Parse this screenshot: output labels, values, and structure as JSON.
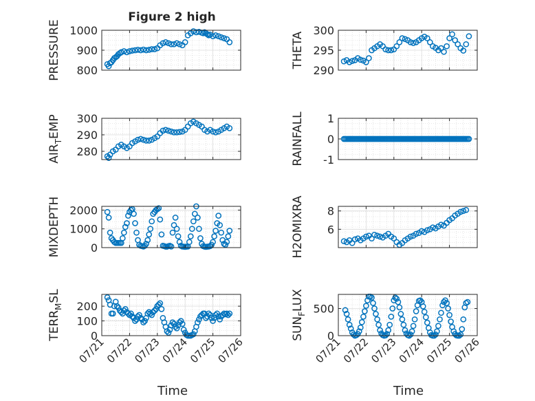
{
  "figure": {
    "title": "Figure 2 high",
    "xlabel": "Time"
  },
  "style": {
    "marker_color": "#0072BD",
    "axis_color": "#262626",
    "grid_color": "#dcdcdc",
    "background": "#ffffff"
  },
  "chart_data": [
    {
      "type": "scatter",
      "id": "pressure",
      "title": "Figure 2 high",
      "ylabel": "PRESSURE",
      "ylabel_main": "PRESSURE",
      "ylabel_sub": "",
      "ylabel_tail": "",
      "xlim": [
        0,
        5
      ],
      "ylim": [
        800,
        1000
      ],
      "yticks": [
        800,
        900,
        1000
      ],
      "xticks": [],
      "grid": true,
      "x": [
        0.2,
        0.25,
        0.3,
        0.35,
        0.4,
        0.45,
        0.5,
        0.55,
        0.6,
        0.65,
        0.7,
        0.8,
        0.9,
        1.0,
        1.1,
        1.2,
        1.3,
        1.4,
        1.5,
        1.6,
        1.7,
        1.8,
        1.9,
        2.0,
        2.1,
        2.2,
        2.3,
        2.4,
        2.5,
        2.6,
        2.7,
        2.8,
        2.9,
        3.0,
        3.1,
        3.2,
        3.3,
        3.4,
        3.5,
        3.6,
        3.65,
        3.7,
        3.75,
        3.8,
        3.85,
        3.9,
        4.0,
        4.1,
        4.2,
        4.3,
        4.4,
        4.5,
        4.6
      ],
      "y": [
        830,
        820,
        835,
        840,
        850,
        860,
        865,
        870,
        880,
        885,
        890,
        895,
        890,
        895,
        898,
        900,
        902,
        900,
        903,
        900,
        902,
        905,
        905,
        910,
        925,
        935,
        940,
        935,
        930,
        930,
        935,
        930,
        925,
        940,
        975,
        985,
        995,
        990,
        992,
        988,
        985,
        990,
        985,
        980,
        975,
        978,
        970,
        975,
        970,
        965,
        960,
        955,
        940
      ]
    },
    {
      "type": "scatter",
      "id": "theta",
      "ylabel": "THETA",
      "ylabel_main": "THETA",
      "ylabel_sub": "",
      "ylabel_tail": "",
      "xlim": [
        0,
        5
      ],
      "ylim": [
        290,
        300
      ],
      "yticks": [
        290,
        295,
        300
      ],
      "xticks": [],
      "grid": true,
      "x": [
        0.2,
        0.3,
        0.4,
        0.5,
        0.6,
        0.7,
        0.8,
        0.9,
        1.0,
        1.1,
        1.2,
        1.3,
        1.4,
        1.5,
        1.6,
        1.7,
        1.8,
        1.9,
        2.0,
        2.1,
        2.2,
        2.3,
        2.4,
        2.5,
        2.6,
        2.7,
        2.8,
        2.9,
        3.0,
        3.1,
        3.2,
        3.3,
        3.4,
        3.5,
        3.6,
        3.7,
        3.8,
        3.9,
        4.0,
        4.1,
        4.2,
        4.3,
        4.4,
        4.5,
        4.6,
        4.7
      ],
      "y": [
        292.2,
        292.5,
        292.0,
        292.3,
        292.5,
        293,
        292.6,
        292.4,
        292,
        293,
        295,
        295.5,
        296,
        296.5,
        296,
        295.2,
        295,
        295,
        295.2,
        296,
        297,
        298,
        297.8,
        297.5,
        297,
        296.8,
        297,
        297.5,
        298,
        298.4,
        298,
        297,
        296,
        295.6,
        295,
        295.5,
        294.6,
        296,
        298,
        299,
        297.5,
        296.5,
        295.5,
        294.9,
        296.5,
        298.5
      ]
    },
    {
      "type": "scatter",
      "id": "air_temp",
      "ylabel": "AIR_TEMP",
      "ylabel_main": "AIR",
      "ylabel_sub": "T",
      "ylabel_tail": "EMP",
      "xlim": [
        0,
        5
      ],
      "ylim": [
        275,
        300
      ],
      "yticks": [
        280,
        290,
        300
      ],
      "xticks": [],
      "grid": true,
      "x": [
        0.2,
        0.25,
        0.3,
        0.4,
        0.5,
        0.6,
        0.7,
        0.8,
        0.9,
        1.0,
        1.1,
        1.2,
        1.3,
        1.4,
        1.5,
        1.6,
        1.7,
        1.8,
        1.9,
        2.0,
        2.1,
        2.2,
        2.3,
        2.4,
        2.5,
        2.6,
        2.7,
        2.8,
        2.9,
        3.0,
        3.1,
        3.2,
        3.3,
        3.4,
        3.5,
        3.6,
        3.7,
        3.8,
        3.9,
        4.0,
        4.1,
        4.2,
        4.3,
        4.4,
        4.5,
        4.6
      ],
      "y": [
        277,
        276,
        278,
        280,
        281,
        283,
        284,
        283,
        282,
        283,
        285,
        286,
        287,
        287.5,
        287,
        286.5,
        286.5,
        287,
        288,
        289,
        291,
        292.5,
        293,
        292.5,
        292,
        291.5,
        291.5,
        291.7,
        292,
        293,
        295,
        297,
        298,
        297,
        296,
        295,
        293,
        292,
        293,
        292,
        291.5,
        292,
        293,
        294,
        295,
        294
      ]
    },
    {
      "type": "scatter",
      "id": "rainfall",
      "ylabel": "RAINFALL",
      "ylabel_main": "RAINFALL",
      "ylabel_sub": "",
      "ylabel_tail": "",
      "xlim": [
        0,
        5
      ],
      "ylim": [
        -1,
        1
      ],
      "yticks": [
        -1,
        0,
        1
      ],
      "xticks": [],
      "grid": true,
      "x_range": [
        0.2,
        4.7
      ],
      "x_step": 0.05,
      "y_value": 0
    },
    {
      "type": "scatter",
      "id": "mixdepth",
      "ylabel": "MIXDEPTH",
      "ylabel_main": "MIXDEPTH",
      "ylabel_sub": "",
      "ylabel_tail": "",
      "xlim": [
        0,
        5
      ],
      "ylim": [
        0,
        2200
      ],
      "yticks": [
        0,
        1000,
        2000
      ],
      "xticks": [],
      "grid": true,
      "x": [
        0.2,
        0.25,
        0.3,
        0.35,
        0.4,
        0.45,
        0.5,
        0.55,
        0.6,
        0.65,
        0.7,
        0.75,
        0.8,
        0.85,
        0.9,
        0.95,
        1.0,
        1.05,
        1.1,
        1.15,
        1.2,
        1.25,
        1.3,
        1.35,
        1.4,
        1.45,
        1.5,
        1.55,
        1.6,
        1.65,
        1.7,
        1.75,
        1.8,
        1.85,
        1.9,
        1.95,
        2.0,
        2.05,
        2.1,
        2.15,
        2.2,
        2.25,
        2.3,
        2.35,
        2.4,
        2.45,
        2.5,
        2.55,
        2.6,
        2.65,
        2.7,
        2.75,
        2.8,
        2.85,
        2.9,
        2.95,
        3.0,
        3.05,
        3.1,
        3.15,
        3.2,
        3.25,
        3.3,
        3.35,
        3.4,
        3.45,
        3.5,
        3.55,
        3.6,
        3.65,
        3.7,
        3.75,
        3.8,
        3.85,
        3.9,
        3.95,
        4.0,
        4.05,
        4.1,
        4.15,
        4.2,
        4.25,
        4.3,
        4.35,
        4.4,
        4.45,
        4.5,
        4.55,
        4.6
      ],
      "y": [
        1900,
        1600,
        800,
        500,
        400,
        300,
        250,
        250,
        250,
        250,
        250,
        500,
        800,
        1100,
        1300,
        1700,
        1900,
        2000,
        2050,
        1800,
        1300,
        800,
        400,
        150,
        100,
        80,
        60,
        100,
        200,
        400,
        700,
        1000,
        1400,
        1800,
        1900,
        2000,
        2050,
        2100,
        1500,
        700,
        100,
        80,
        50,
        50,
        80,
        100,
        60,
        800,
        1200,
        1600,
        1000,
        600,
        300,
        100,
        60,
        50,
        40,
        50,
        60,
        300,
        600,
        1000,
        1400,
        1800,
        2200,
        1600,
        1000,
        500,
        200,
        80,
        50,
        40,
        50,
        60,
        80,
        150,
        300,
        600,
        900,
        1300,
        1700,
        1200,
        800,
        400,
        200,
        150,
        300,
        600,
        900
      ]
    },
    {
      "type": "scatter",
      "id": "h2omixra",
      "ylabel": "H2OMIXRA",
      "ylabel_main": "H2OMIXRA",
      "ylabel_sub": "",
      "ylabel_tail": "",
      "xlim": [
        0,
        5
      ],
      "ylim": [
        4,
        8.5
      ],
      "yticks": [
        6,
        8
      ],
      "xticks": [],
      "grid": true,
      "x": [
        0.2,
        0.3,
        0.4,
        0.5,
        0.6,
        0.7,
        0.8,
        0.9,
        1.0,
        1.1,
        1.2,
        1.3,
        1.4,
        1.5,
        1.6,
        1.7,
        1.8,
        1.9,
        2.0,
        2.1,
        2.2,
        2.3,
        2.4,
        2.5,
        2.6,
        2.7,
        2.8,
        2.9,
        3.0,
        3.1,
        3.2,
        3.3,
        3.4,
        3.5,
        3.6,
        3.7,
        3.8,
        3.9,
        4.0,
        4.1,
        4.2,
        4.3,
        4.4,
        4.5,
        4.6
      ],
      "y": [
        4.7,
        4.6,
        4.8,
        4.5,
        4.9,
        5.0,
        4.8,
        5.0,
        5.2,
        5.3,
        5.0,
        5.4,
        5.3,
        5.2,
        5.1,
        5.3,
        5.5,
        5.2,
        5.0,
        4.6,
        4.3,
        4.5,
        4.8,
        5.0,
        5.2,
        5.3,
        5.5,
        5.6,
        5.8,
        5.7,
        5.9,
        6.0,
        6.2,
        6.1,
        6.3,
        6.5,
        6.4,
        6.7,
        7.0,
        7.2,
        7.5,
        7.7,
        7.9,
        8.0,
        8.1
      ]
    },
    {
      "type": "scatter",
      "id": "terr_msl",
      "ylabel": "TERR_MSL",
      "ylabel_main": "TERR",
      "ylabel_sub": "M",
      "ylabel_tail": "SL",
      "xlim": [
        0,
        5
      ],
      "ylim": [
        0,
        280
      ],
      "yticks": [
        0,
        100,
        200
      ],
      "xticks": [
        "07/21",
        "07/22",
        "07/23",
        "07/24",
        "07/25",
        "07/26"
      ],
      "grid": true,
      "x": [
        0.2,
        0.25,
        0.3,
        0.35,
        0.4,
        0.45,
        0.5,
        0.55,
        0.6,
        0.65,
        0.7,
        0.75,
        0.8,
        0.85,
        0.9,
        0.95,
        1.0,
        1.05,
        1.1,
        1.15,
        1.2,
        1.25,
        1.3,
        1.35,
        1.4,
        1.45,
        1.5,
        1.55,
        1.6,
        1.65,
        1.7,
        1.75,
        1.8,
        1.85,
        1.9,
        1.95,
        2.0,
        2.05,
        2.1,
        2.15,
        2.2,
        2.25,
        2.3,
        2.35,
        2.4,
        2.45,
        2.5,
        2.55,
        2.6,
        2.65,
        2.7,
        2.75,
        2.8,
        2.85,
        2.9,
        2.95,
        3.0,
        3.05,
        3.1,
        3.15,
        3.2,
        3.25,
        3.3,
        3.35,
        3.4,
        3.45,
        3.5,
        3.55,
        3.6,
        3.65,
        3.7,
        3.75,
        3.8,
        3.85,
        3.9,
        3.95,
        4.0,
        4.05,
        4.1,
        4.15,
        4.2,
        4.25,
        4.3,
        4.35,
        4.4,
        4.45,
        4.5,
        4.55,
        4.6
      ],
      "y": [
        260,
        240,
        210,
        150,
        150,
        200,
        230,
        200,
        190,
        170,
        160,
        150,
        170,
        180,
        160,
        150,
        140,
        150,
        130,
        120,
        100,
        110,
        130,
        140,
        120,
        110,
        90,
        100,
        120,
        150,
        160,
        150,
        140,
        160,
        170,
        180,
        200,
        210,
        220,
        180,
        120,
        90,
        60,
        30,
        20,
        40,
        70,
        90,
        80,
        60,
        50,
        70,
        90,
        100,
        80,
        40,
        20,
        5,
        0,
        0,
        0,
        5,
        10,
        30,
        60,
        90,
        110,
        130,
        140,
        150,
        150,
        120,
        130,
        150,
        140,
        120,
        100,
        120,
        140,
        150,
        130,
        110,
        130,
        140,
        150,
        145,
        150,
        140,
        150
      ]
    },
    {
      "type": "scatter",
      "id": "sun_flux",
      "ylabel": "SUN_FLUX",
      "ylabel_main": "SUN",
      "ylabel_sub": "F",
      "ylabel_tail": "LUX",
      "xlim": [
        0,
        5
      ],
      "ylim": [
        0,
        760
      ],
      "yticks": [
        0,
        500
      ],
      "xticks": [
        "07/21",
        "07/22",
        "07/23",
        "07/24",
        "07/25",
        "07/26"
      ],
      "grid": true,
      "x": [
        0.25,
        0.3,
        0.35,
        0.4,
        0.45,
        0.5,
        0.55,
        0.6,
        0.65,
        0.7,
        0.75,
        0.8,
        0.85,
        0.9,
        0.95,
        1.0,
        1.05,
        1.1,
        1.15,
        1.2,
        1.25,
        1.3,
        1.35,
        1.4,
        1.45,
        1.5,
        1.55,
        1.6,
        1.65,
        1.7,
        1.75,
        1.8,
        1.85,
        1.9,
        1.95,
        2.0,
        2.05,
        2.1,
        2.15,
        2.2,
        2.25,
        2.3,
        2.35,
        2.4,
        2.45,
        2.5,
        2.55,
        2.6,
        2.65,
        2.7,
        2.75,
        2.8,
        2.85,
        2.9,
        2.95,
        3.0,
        3.05,
        3.1,
        3.15,
        3.2,
        3.25,
        3.3,
        3.35,
        3.4,
        3.45,
        3.5,
        3.55,
        3.6,
        3.65,
        3.7,
        3.75,
        3.8,
        3.85,
        3.9,
        3.95,
        4.0,
        4.05,
        4.1,
        4.15,
        4.2,
        4.25,
        4.3,
        4.35,
        4.4,
        4.45,
        4.5,
        4.55,
        4.6,
        4.65
      ],
      "y": [
        470,
        400,
        300,
        200,
        130,
        60,
        20,
        0,
        10,
        30,
        80,
        150,
        250,
        350,
        450,
        550,
        650,
        720,
        720,
        700,
        600,
        500,
        400,
        300,
        200,
        100,
        40,
        10,
        0,
        5,
        30,
        100,
        200,
        350,
        500,
        650,
        700,
        680,
        620,
        520,
        400,
        300,
        200,
        100,
        40,
        10,
        0,
        20,
        80,
        180,
        300,
        450,
        560,
        640,
        650,
        620,
        540,
        440,
        340,
        240,
        140,
        60,
        10,
        0,
        0,
        20,
        80,
        180,
        300,
        420,
        560,
        620,
        650,
        600,
        500,
        380,
        260,
        160,
        80,
        30,
        5,
        0,
        0,
        20,
        120,
        300,
        520,
        600,
        620
      ]
    }
  ]
}
